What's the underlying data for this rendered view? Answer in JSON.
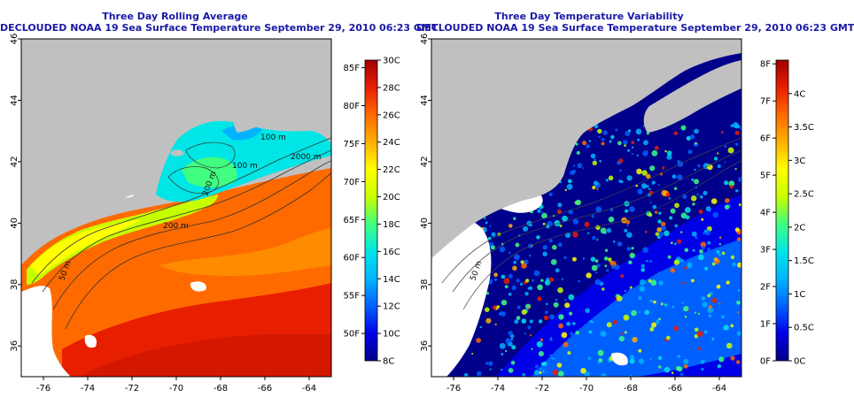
{
  "left_map": {
    "title": "Three Day Rolling Average",
    "subtitle": "DECLOUDED NOAA 19 Sea Surface Temperature September 29, 2010 06:23 GMT",
    "x_ticks": [
      "-76",
      "-74",
      "-72",
      "-70",
      "-68",
      "-66",
      "-64"
    ],
    "y_ticks": [
      "36",
      "38",
      "40",
      "42",
      "44",
      "46"
    ],
    "contour_labels": [
      "100 m",
      "100 m",
      "2000 m",
      "200 m",
      "200 m",
      "50 m"
    ],
    "colorbar_f": [
      "50F",
      "55F",
      "60F",
      "65F",
      "70F",
      "75F",
      "80F",
      "85F"
    ],
    "colorbar_c": [
      "8C",
      "10C",
      "12C",
      "14C",
      "16C",
      "18C",
      "20C",
      "22C",
      "24C",
      "26C",
      "28C",
      "30C"
    ]
  },
  "right_map": {
    "title": "Three Day Temperature Variability",
    "subtitle": "DECLOUDED NOAA 19 Sea Surface Temperature September 29, 2010 06:23 GMT",
    "x_ticks": [
      "-76",
      "-74",
      "-72",
      "-70",
      "-68",
      "-66",
      "-64"
    ],
    "y_ticks": [
      "36",
      "38",
      "40",
      "42",
      "44",
      "46"
    ],
    "contour_labels": [
      "50 m"
    ],
    "colorbar_f": [
      "0F",
      "1F",
      "2F",
      "3F",
      "4F",
      "5F",
      "6F",
      "7F",
      "8F"
    ],
    "colorbar_c": [
      "0C",
      "0.5C",
      "1C",
      "1.5C",
      "2C",
      "2.5C",
      "3C",
      "3.5C",
      "4C"
    ]
  },
  "colors": {
    "title": "#1a1aa6",
    "land": "#c0c0c0",
    "no_data": "#ffffff",
    "sst_scale": [
      "#00008b",
      "#0000e6",
      "#0060ff",
      "#00b4ff",
      "#00e6e6",
      "#40ff80",
      "#c8ff00",
      "#ffff00",
      "#ffb000",
      "#ff6a00",
      "#e81e00",
      "#a00000"
    ],
    "var_scale": [
      "#00008b",
      "#0000e6",
      "#0060ff",
      "#00b4ff",
      "#00e6e6",
      "#40ff80",
      "#c8ff00",
      "#ffff00",
      "#ffb000",
      "#ff6a00",
      "#e81e00",
      "#a00000"
    ]
  }
}
